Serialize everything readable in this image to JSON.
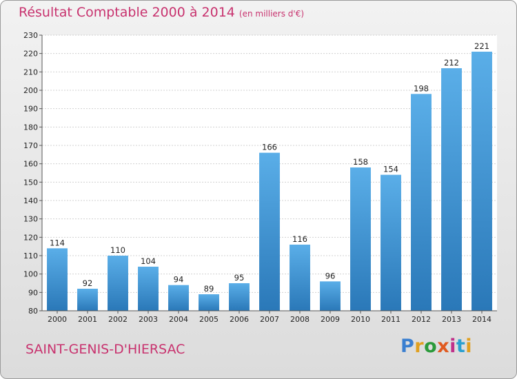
{
  "header": {
    "title": "Résultat Comptable 2000 à 2014",
    "subtitle": "(en milliers d'€)"
  },
  "footer": {
    "commune": "SAINT-GENIS-D'HIERSAC",
    "logo": "Proxiti"
  },
  "colors": {
    "title": "#c8326e",
    "bar_light": "#5aaee8",
    "bar_dark": "#2a78b8",
    "logo_letters": [
      "#3a7fd0",
      "#e0a020",
      "#2a9a3a",
      "#e05a20",
      "#c0308a",
      "#2aa0d0",
      "#e0a020"
    ]
  },
  "chart_data": {
    "type": "bar",
    "title": "Résultat Comptable 2000 à 2014",
    "subtitle": "(en milliers d'€)",
    "categories": [
      "2000",
      "2001",
      "2002",
      "2003",
      "2004",
      "2005",
      "2006",
      "2007",
      "2008",
      "2009",
      "2010",
      "2011",
      "2012",
      "2013",
      "2014"
    ],
    "values": [
      114,
      92,
      110,
      104,
      94,
      89,
      95,
      166,
      116,
      96,
      158,
      154,
      198,
      212,
      221
    ],
    "xlabel": "",
    "ylabel": "",
    "ylim": [
      80,
      230
    ],
    "yticks": [
      80,
      90,
      100,
      110,
      120,
      130,
      140,
      150,
      160,
      170,
      180,
      190,
      200,
      210,
      220,
      230
    ],
    "grid": true,
    "legend": "none"
  }
}
